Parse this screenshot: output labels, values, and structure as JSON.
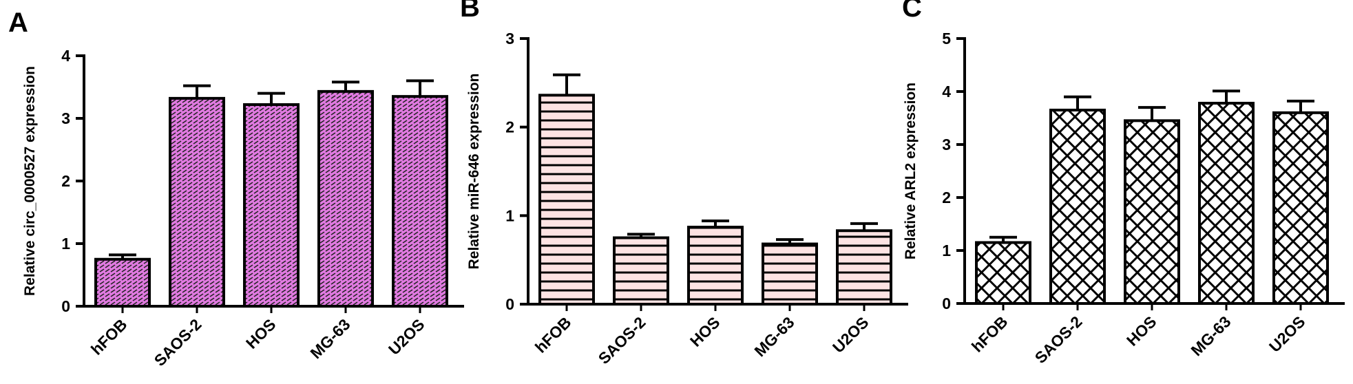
{
  "chart_data": [
    {
      "type": "bar",
      "panel_label": "A",
      "y_label": "Relative circ_0000527 expression",
      "categories": [
        "hFOB",
        "SAOS-2",
        "HOS",
        "MG-63",
        "U2OS"
      ],
      "values": [
        0.75,
        3.32,
        3.22,
        3.43,
        3.35
      ],
      "errors": [
        0.07,
        0.2,
        0.18,
        0.15,
        0.25
      ],
      "color": "#e07ae0",
      "pattern": "brick",
      "ylim": [
        0,
        4
      ],
      "yticks": [
        0,
        1,
        2,
        3,
        4
      ]
    },
    {
      "type": "bar",
      "panel_label": "B",
      "y_label": "Relative miR-646 expression",
      "categories": [
        "hFOB",
        "SAOS-2",
        "HOS",
        "MG-63",
        "U2OS"
      ],
      "values": [
        2.36,
        0.75,
        0.87,
        0.68,
        0.83
      ],
      "errors": [
        0.23,
        0.04,
        0.07,
        0.05,
        0.08
      ],
      "color": "#fde3e3",
      "pattern": "horizontal",
      "ylim": [
        0,
        3
      ],
      "yticks": [
        0,
        1,
        2,
        3
      ]
    },
    {
      "type": "bar",
      "panel_label": "C",
      "y_label": "Relative ARL2 expression",
      "categories": [
        "hFOB",
        "SAOS-2",
        "HOS",
        "MG-63",
        "U2OS"
      ],
      "values": [
        1.15,
        3.65,
        3.45,
        3.78,
        3.6
      ],
      "errors": [
        0.1,
        0.25,
        0.25,
        0.23,
        0.22
      ],
      "color": "#ffffff",
      "pattern": "crosshatch",
      "ylim": [
        0,
        5
      ],
      "yticks": [
        0,
        1,
        2,
        3,
        4,
        5
      ]
    }
  ]
}
